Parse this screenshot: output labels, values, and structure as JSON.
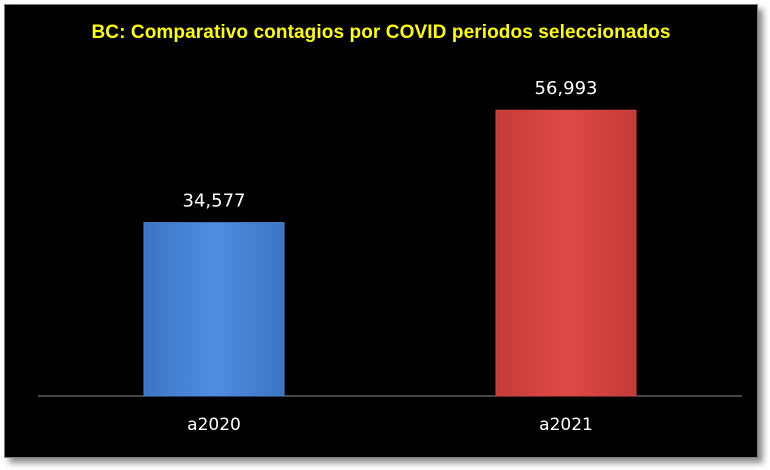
{
  "chart_data": {
    "type": "bar",
    "title": "BC: Comparativo contagios por COVID periodos seleccionados",
    "categories": [
      "a2020",
      "a2021"
    ],
    "values": [
      34577,
      56993
    ],
    "data_labels": [
      "34,577",
      "56,993"
    ],
    "colors": [
      "#4a86d8",
      "#d84442"
    ],
    "ylim": [
      0,
      70000
    ],
    "grid": false,
    "legend": "none",
    "background": "#000000",
    "title_color": "#ffff00"
  }
}
